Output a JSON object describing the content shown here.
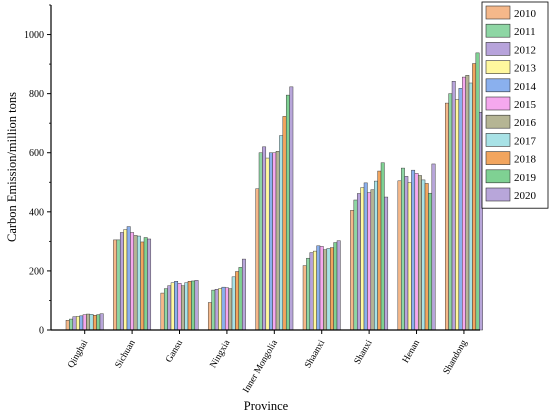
{
  "chart_data": {
    "type": "bar",
    "title": "",
    "xlabel": "Province",
    "ylabel": "Carbon Emission/million tons",
    "ylim": [
      0,
      1100
    ],
    "yticks": [
      0,
      200,
      400,
      600,
      800,
      1000
    ],
    "grid": false,
    "legend_position": "top-right",
    "categories": [
      "Qinghai",
      "Sichuan",
      "Gansu",
      "Ningxia",
      "Inner Mongolia",
      "Shaanxi",
      "Shanxi",
      "Henan",
      "Shandong"
    ],
    "series": [
      {
        "name": "2010",
        "color": "#f5b88a",
        "values": [
          33,
          305,
          125,
          93,
          478,
          218,
          405,
          505,
          768
        ]
      },
      {
        "name": "2011",
        "color": "#8ed6a4",
        "values": [
          37,
          305,
          140,
          135,
          600,
          243,
          440,
          548,
          800
        ]
      },
      {
        "name": "2012",
        "color": "#b7a3db",
        "values": [
          45,
          330,
          150,
          138,
          620,
          262,
          462,
          520,
          842
        ]
      },
      {
        "name": "2013",
        "color": "#fff89e",
        "values": [
          46,
          340,
          160,
          140,
          582,
          267,
          482,
          499,
          780
        ]
      },
      {
        "name": "2014",
        "color": "#8ab0ee",
        "values": [
          48,
          350,
          165,
          145,
          600,
          285,
          498,
          541,
          818
        ]
      },
      {
        "name": "2015",
        "color": "#f5a8ee",
        "values": [
          52,
          330,
          158,
          143,
          600,
          283,
          465,
          530,
          856
        ]
      },
      {
        "name": "2016",
        "color": "#b5b594",
        "values": [
          54,
          320,
          150,
          140,
          605,
          272,
          475,
          523,
          862
        ]
      },
      {
        "name": "2017",
        "color": "#a8e2e6",
        "values": [
          53,
          318,
          160,
          180,
          658,
          276,
          504,
          508,
          836
        ]
      },
      {
        "name": "2018",
        "color": "#f2a55e",
        "values": [
          50,
          298,
          165,
          198,
          723,
          279,
          538,
          496,
          902
        ]
      },
      {
        "name": "2019",
        "color": "#7fd193",
        "values": [
          52,
          313,
          166,
          212,
          795,
          296,
          566,
          463,
          938
        ]
      },
      {
        "name": "2020",
        "color": "#b8a6da",
        "values": [
          55,
          308,
          168,
          240,
          823,
          302,
          450,
          562,
          737
        ]
      }
    ]
  }
}
